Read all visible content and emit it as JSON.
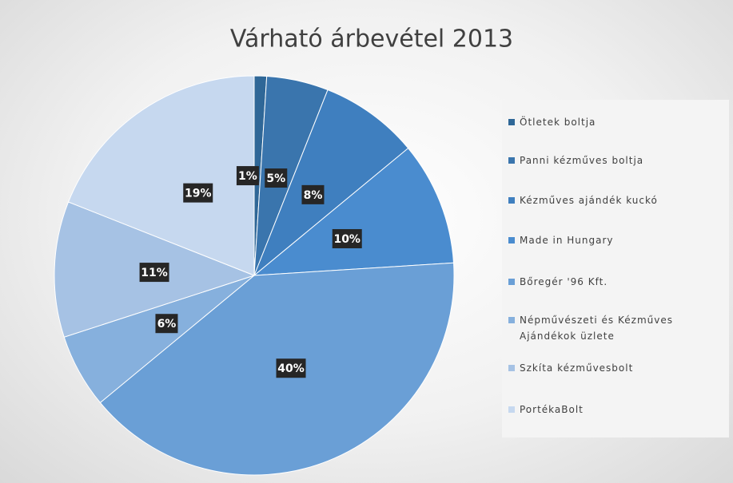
{
  "chart_data": {
    "type": "pie",
    "title": "Várható árbevétel 2013",
    "categories": [
      "Ötletek boltja",
      "Panni kézműves boltja",
      "Kézműves ajándék kuckó",
      "Made in Hungary",
      "Bőregér '96 Kft.",
      "Népművészeti és Kézműves Ajándékok üzlete",
      "Szkíta kézművesbolt",
      "PortékaBolt"
    ],
    "values": [
      1,
      5,
      8,
      10,
      40,
      6,
      11,
      19
    ],
    "value_labels": [
      "1%",
      "5%",
      "8%",
      "10%",
      "40%",
      "6%",
      "11%",
      "19%"
    ],
    "colors": [
      "#2f6797",
      "#3a75ad",
      "#3f7fbf",
      "#4a8ccf",
      "#6a9fd6",
      "#86b0dd",
      "#a6c2e4",
      "#c6d8ef"
    ],
    "legend": "right"
  }
}
